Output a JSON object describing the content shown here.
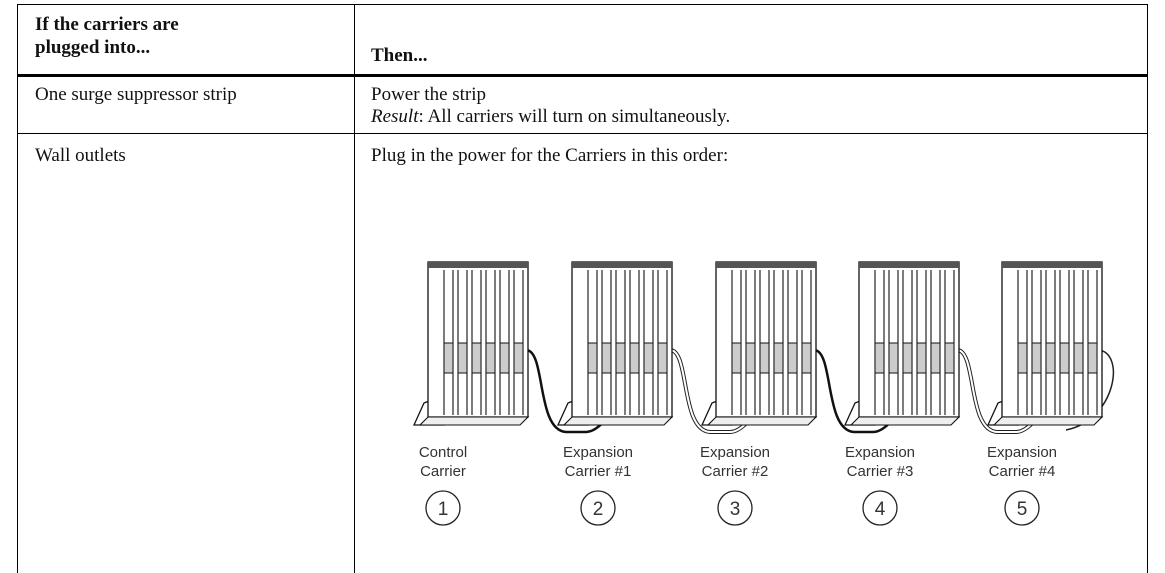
{
  "table": {
    "header": {
      "condition_lines": [
        "If the carriers are",
        "plugged into..."
      ],
      "action": "Then..."
    },
    "rows": [
      {
        "condition": "One surge suppressor strip",
        "action": "Power the strip",
        "result_label": "Result",
        "result_text": ": All carriers will turn on simultaneously."
      },
      {
        "condition": "Wall outlets",
        "action": "Plug in the power for the Carriers in this order:"
      }
    ],
    "carriers": [
      {
        "label_lines": [
          "Control",
          "Carrier"
        ],
        "number": "1"
      },
      {
        "label_lines": [
          "Expansion",
          "Carrier #1"
        ],
        "number": "2"
      },
      {
        "label_lines": [
          "Expansion",
          "Carrier #2"
        ],
        "number": "3"
      },
      {
        "label_lines": [
          "Expansion",
          "Carrier #3"
        ],
        "number": "4"
      },
      {
        "label_lines": [
          "Expansion",
          "Carrier #4"
        ],
        "number": "5"
      }
    ]
  }
}
